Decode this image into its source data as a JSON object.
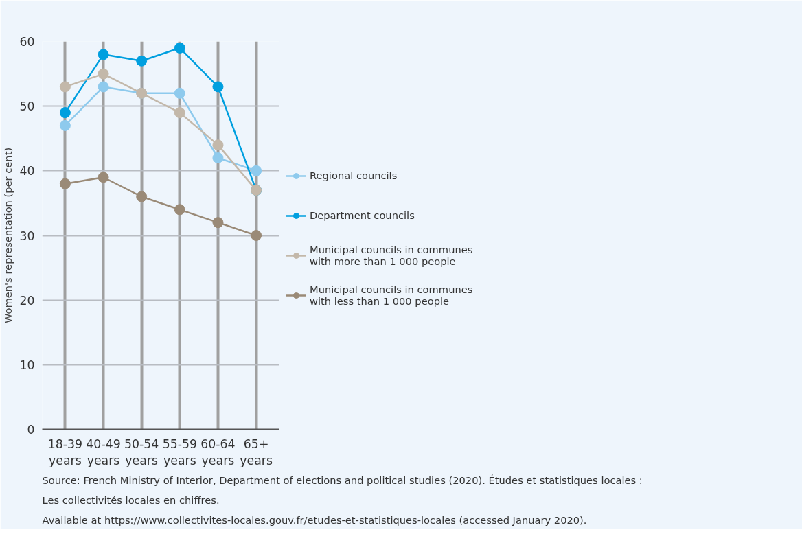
{
  "chart_data": {
    "type": "line",
    "ylabel": "Women's representation (per cent)",
    "categories": [
      "18-39\nyears",
      "40-49\nyears",
      "50-54\nyears",
      "55-59\nyears",
      "60-64\nyears",
      "65+\nyears"
    ],
    "series": [
      {
        "name": "Regional councils",
        "color": "#8ecaed",
        "values": [
          47,
          53,
          52,
          52,
          42,
          40
        ]
      },
      {
        "name": "Department councils",
        "color": "#009fdf",
        "values": [
          49,
          58,
          57,
          59,
          53,
          37
        ]
      },
      {
        "name": "Municipal councils in communes\nwith more than 1 000 people",
        "color": "#c3b8aa",
        "values": [
          53,
          55,
          52,
          49,
          44,
          37
        ]
      },
      {
        "name": "Municipal councils in communes\nwith less than 1 000 people",
        "color": "#9a8a77",
        "values": [
          38,
          39,
          36,
          34,
          32,
          30
        ]
      }
    ],
    "ylim": [
      0,
      60
    ],
    "yticks": [
      0,
      10,
      20,
      30,
      40,
      50,
      60
    ],
    "grid": true,
    "legend": "right",
    "marker": "circle",
    "line_style": "solid",
    "annotations": [
      "Source: French Ministry of Interior, Department of elections and political studies (2020). Études et statistiques locales :",
      "Les collectivités locales en chiffres.",
      "Available at https://www.collectivites-locales.gouv.fr/etudes-et-statistiques-locales (accessed January 2020)."
    ]
  }
}
